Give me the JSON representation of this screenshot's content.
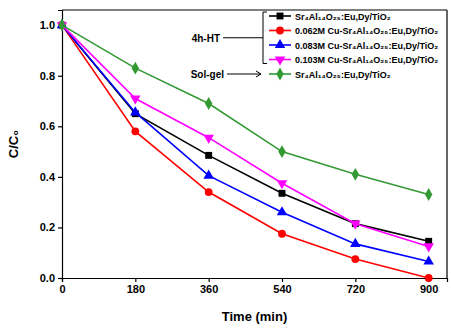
{
  "chart_data": {
    "type": "line",
    "x_label": "Time (min)",
    "y_label": "C/C₀",
    "x": [
      0,
      180,
      360,
      540,
      720,
      900
    ],
    "xlim": [
      0,
      945
    ],
    "xticks": [
      0,
      180,
      360,
      540,
      720,
      900
    ],
    "ylim": [
      0,
      1.06
    ],
    "yticks": [
      {
        "value": 0,
        "label": "0.0"
      },
      0.2,
      0.4,
      0.6,
      0.8,
      {
        "value": 1,
        "label": "1.0"
      }
    ],
    "legend": "upper right",
    "grid": false,
    "annotations": [
      "4h-HT",
      "Sol-gel"
    ],
    "series": [
      {
        "name": "Sr₄Al₁₄O₂₅:Eu,Dy/TiO₂",
        "color": "#000000",
        "marker": "square",
        "line_style": "solid",
        "values": [
          1.0,
          0.65,
          0.485,
          0.335,
          0.215,
          0.145
        ]
      },
      {
        "name": "0.062M Cu-Sr₄Al₁₄O₂₅:Eu,Dy/TiO₂",
        "color": "#ff0000",
        "marker": "circle",
        "line_style": "solid",
        "values": [
          1.0,
          0.58,
          0.34,
          0.175,
          0.075,
          0.0
        ]
      },
      {
        "name": "0.083M Cu-Sr₄Al₁₄O₂₅:Eu,Dy/TiO₂",
        "color": "#0000ff",
        "marker": "triangle",
        "line_style": "solid",
        "values": [
          1.0,
          0.655,
          0.405,
          0.26,
          0.135,
          0.065
        ]
      },
      {
        "name": "0.103M Cu-Sr₄Al₁₄O₂₅:Eu,Dy/TiO₂",
        "color": "#ff00ff",
        "marker": "triangle-down",
        "line_style": "solid",
        "values": [
          1.0,
          0.71,
          0.555,
          0.375,
          0.215,
          0.125
        ]
      },
      {
        "name": "Sr₄Al₁₄O₂₅:Eu,Dy/TiO₂",
        "color": "#339933",
        "marker": "diamond",
        "line_style": "solid",
        "values": [
          1.0,
          0.83,
          0.69,
          0.5,
          0.41,
          0.33
        ]
      }
    ]
  }
}
